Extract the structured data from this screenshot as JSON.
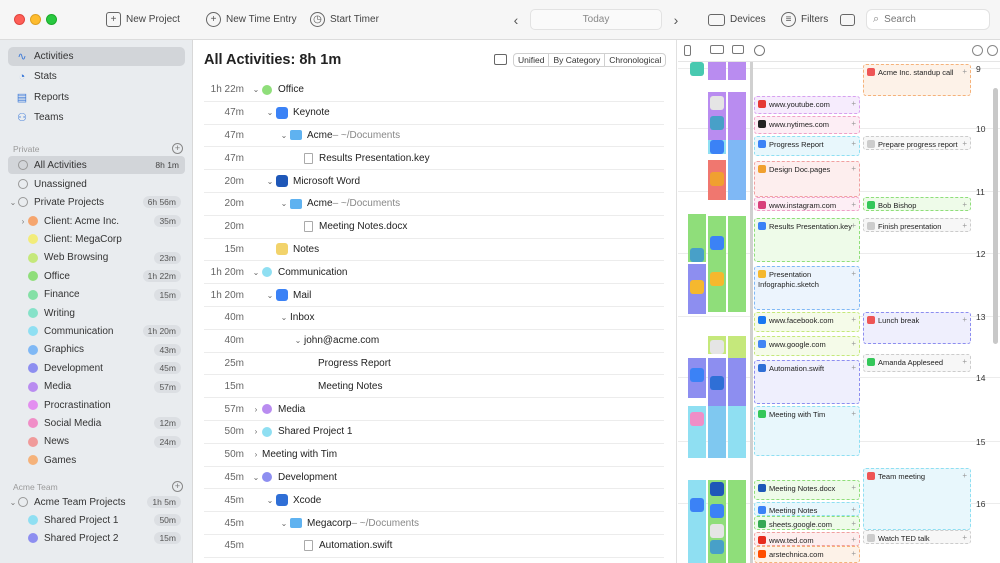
{
  "toolbar": {
    "new_project": "New Project",
    "new_time_entry": "New Time Entry",
    "start_timer": "Start Timer",
    "today": "Today",
    "devices": "Devices",
    "filters": "Filters",
    "search_placeholder": "Search"
  },
  "sidebar": {
    "nav": [
      {
        "label": "Activities",
        "icon": "activity-icon"
      },
      {
        "label": "Stats",
        "icon": "stats-icon"
      },
      {
        "label": "Reports",
        "icon": "reports-icon"
      },
      {
        "label": "Teams",
        "icon": "teams-icon"
      }
    ],
    "private_section": "Private",
    "all_activities": {
      "label": "All Activities",
      "time": "8h 1m"
    },
    "unassigned": "Unassigned",
    "private_projects": {
      "label": "Private Projects",
      "time": "6h 56m"
    },
    "categories": [
      {
        "label": "Client: Acme Inc.",
        "time": "35m",
        "color": "#f5a56e",
        "chev": true
      },
      {
        "label": "Client: MegaCorp",
        "time": "",
        "color": "#f2ec7a",
        "chev": false
      },
      {
        "label": "Web Browsing",
        "time": "23m",
        "color": "#c5e87b",
        "chev": false
      },
      {
        "label": "Office",
        "time": "1h 22m",
        "color": "#8fde7a",
        "chev": false
      },
      {
        "label": "Finance",
        "time": "15m",
        "color": "#84e0a6",
        "chev": false
      },
      {
        "label": "Writing",
        "time": "",
        "color": "#86e2c9",
        "chev": false
      },
      {
        "label": "Communication",
        "time": "1h 20m",
        "color": "#8fdff2",
        "chev": false
      },
      {
        "label": "Graphics",
        "time": "43m",
        "color": "#7fb8f5",
        "chev": false
      },
      {
        "label": "Development",
        "time": "45m",
        "color": "#8d8ef0",
        "chev": false
      },
      {
        "label": "Media",
        "time": "57m",
        "color": "#b98cf0",
        "chev": false
      },
      {
        "label": "Procrastination",
        "time": "",
        "color": "#e38ef0",
        "chev": false
      },
      {
        "label": "Social Media",
        "time": "12m",
        "color": "#f08ec7",
        "chev": false
      },
      {
        "label": "News",
        "time": "24m",
        "color": "#f09a9a",
        "chev": false
      },
      {
        "label": "Games",
        "time": "",
        "color": "#f5b27a",
        "chev": false
      }
    ],
    "team_section": "Acme Team",
    "team_projects": {
      "label": "Acme Team Projects",
      "time": "1h 5m"
    },
    "team_items": [
      {
        "label": "Shared Project 1",
        "time": "50m",
        "color": "#8fdff2"
      },
      {
        "label": "Shared Project 2",
        "time": "15m",
        "color": "#8d8ef0"
      }
    ]
  },
  "main": {
    "title": "All Activities: 8h 1m",
    "segments": [
      "Unified",
      "By Category",
      "Chronological"
    ],
    "rows": [
      {
        "dur": "1h 22m",
        "indent": 0,
        "chev": "v",
        "kind": "dot",
        "color": "#8fde7a",
        "label": "Office",
        "sub": ""
      },
      {
        "dur": "47m",
        "indent": 1,
        "chev": "v",
        "kind": "app",
        "color": "#3b82f6",
        "label": "Keynote",
        "sub": ""
      },
      {
        "dur": "47m",
        "indent": 2,
        "chev": "v",
        "kind": "folder",
        "color": "",
        "label": "Acme",
        "sub": " – ~/Documents"
      },
      {
        "dur": "47m",
        "indent": 3,
        "chev": "",
        "kind": "doc",
        "color": "",
        "label": "Results Presentation.key",
        "sub": ""
      },
      {
        "dur": "20m",
        "indent": 1,
        "chev": "v",
        "kind": "app",
        "color": "#1e57b8",
        "label": "Microsoft Word",
        "sub": ""
      },
      {
        "dur": "20m",
        "indent": 2,
        "chev": "v",
        "kind": "folder",
        "color": "",
        "label": "Acme",
        "sub": " – ~/Documents"
      },
      {
        "dur": "20m",
        "indent": 3,
        "chev": "",
        "kind": "doc",
        "color": "",
        "label": "Meeting Notes.docx",
        "sub": ""
      },
      {
        "dur": "15m",
        "indent": 1,
        "chev": "",
        "kind": "app",
        "color": "#f2d36b",
        "label": "Notes",
        "sub": ""
      },
      {
        "dur": "1h 20m",
        "indent": 0,
        "chev": "v",
        "kind": "dot",
        "color": "#8fdff2",
        "label": "Communication",
        "sub": ""
      },
      {
        "dur": "1h 20m",
        "indent": 1,
        "chev": "v",
        "kind": "app",
        "color": "#3b82f6",
        "label": "Mail",
        "sub": ""
      },
      {
        "dur": "40m",
        "indent": 2,
        "chev": "v",
        "kind": "none",
        "color": "",
        "label": "Inbox",
        "sub": ""
      },
      {
        "dur": "40m",
        "indent": 3,
        "chev": "v",
        "kind": "none",
        "color": "",
        "label": "john@acme.com",
        "sub": ""
      },
      {
        "dur": "25m",
        "indent": 4,
        "chev": "",
        "kind": "none",
        "color": "",
        "label": "Progress Report",
        "sub": ""
      },
      {
        "dur": "15m",
        "indent": 4,
        "chev": "",
        "kind": "none",
        "color": "",
        "label": "Meeting Notes",
        "sub": ""
      },
      {
        "dur": "57m",
        "indent": 0,
        "chev": ">",
        "kind": "dot",
        "color": "#b98cf0",
        "label": "Media",
        "sub": ""
      },
      {
        "dur": "50m",
        "indent": 0,
        "chev": ">",
        "kind": "dot",
        "color": "#8fdff2",
        "label": "Shared Project 1",
        "sub": ""
      },
      {
        "dur": "50m",
        "indent": 0,
        "chev": ">",
        "kind": "none",
        "color": "",
        "label": "Meeting with Tim",
        "sub": ""
      },
      {
        "dur": "45m",
        "indent": 0,
        "chev": "v",
        "kind": "dot",
        "color": "#8d8ef0",
        "label": "Development",
        "sub": ""
      },
      {
        "dur": "45m",
        "indent": 1,
        "chev": "v",
        "kind": "app",
        "color": "#2f6fd6",
        "label": "Xcode",
        "sub": ""
      },
      {
        "dur": "45m",
        "indent": 2,
        "chev": "v",
        "kind": "folder",
        "color": "",
        "label": "Megacorp",
        "sub": " – ~/Documents"
      },
      {
        "dur": "45m",
        "indent": 3,
        "chev": "",
        "kind": "doc",
        "color": "",
        "label": "Automation.swift",
        "sub": ""
      }
    ]
  },
  "calendar": {
    "hours": [
      "9",
      "10",
      "11",
      "12",
      "13",
      "14",
      "15",
      "16"
    ],
    "activities": [
      {
        "label": "www.youtube.com",
        "icon_color": "#e53935"
      },
      {
        "label": "www.nytimes.com",
        "icon_color": "#222222"
      },
      {
        "label": "Progress Report",
        "icon_color": "#3b82f6"
      },
      {
        "label": "Design Doc.pages",
        "icon_color": "#f0a030"
      },
      {
        "label": "www.instagram.com",
        "icon_color": "#d8407a"
      },
      {
        "label": "Results Presentation.key",
        "icon_color": "#3b82f6"
      },
      {
        "label": "Presentation Infographic.sketch",
        "icon_color": "#f5b82e"
      },
      {
        "label": "www.facebook.com",
        "icon_color": "#1877f2"
      },
      {
        "label": "www.google.com",
        "icon_color": "#4285f4"
      },
      {
        "label": "Automation.swift",
        "icon_color": "#2f6fd6"
      },
      {
        "label": "Meeting with Tim",
        "icon_color": "#34c759"
      },
      {
        "label": "Meeting Notes.docx",
        "icon_color": "#1e57b8"
      },
      {
        "label": "Meeting Notes",
        "icon_color": "#3b82f6"
      },
      {
        "label": "sheets.google.com",
        "icon_color": "#34a853"
      },
      {
        "label": "www.ted.com",
        "icon_color": "#e62b1e"
      },
      {
        "label": "arstechnica.com",
        "icon_color": "#ff4e00"
      }
    ],
    "events": [
      {
        "label": "Acme Inc. standup call",
        "icon_color": "#e55"
      },
      {
        "label": "Prepare progress report",
        "icon_color": "#ccc"
      },
      {
        "label": "Bob Bishop",
        "icon_color": "#34c759"
      },
      {
        "label": "Finish presentation",
        "icon_color": "#ccc"
      },
      {
        "label": "Lunch break",
        "icon_color": "#e55"
      },
      {
        "label": "Amanda Appleseed",
        "icon_color": "#34c759"
      },
      {
        "label": "Team meeting",
        "icon_color": "#e55"
      },
      {
        "label": "Watch TED talk",
        "icon_color": "#ccc"
      }
    ]
  }
}
